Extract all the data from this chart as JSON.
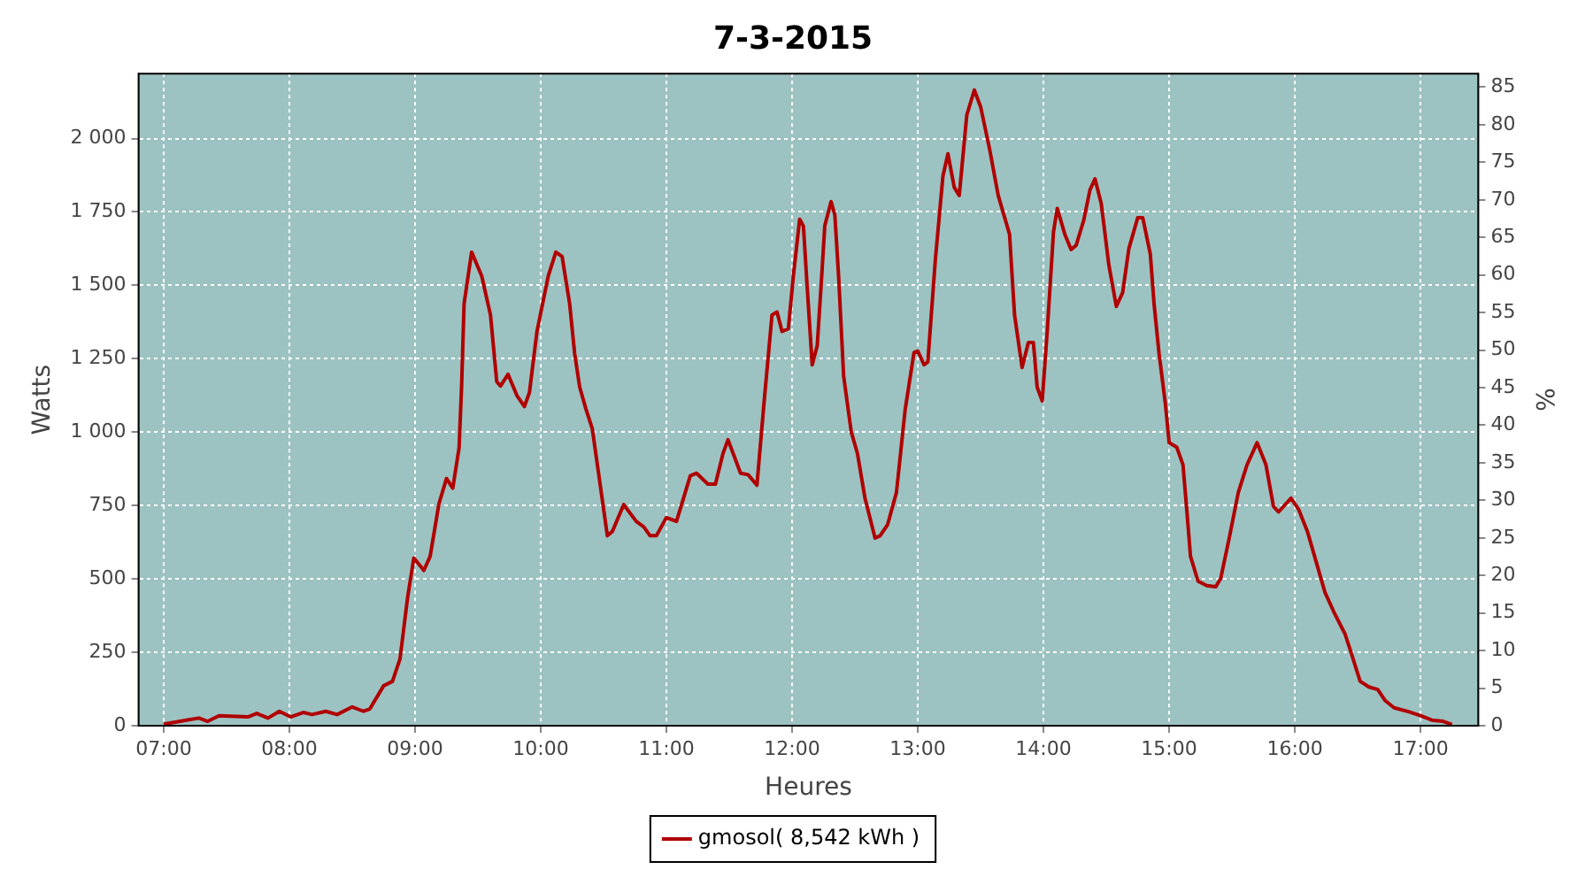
{
  "chart_data": {
    "type": "line",
    "title": "7-3-2015",
    "xlabel": "Heures",
    "ylabel": "Watts",
    "y2label": "%",
    "xlim": [
      6.8,
      17.46
    ],
    "xticks": [
      {
        "value": 7,
        "label": "07:00"
      },
      {
        "value": 8,
        "label": "08:00"
      },
      {
        "value": 9,
        "label": "09:00"
      },
      {
        "value": 10,
        "label": "10:00"
      },
      {
        "value": 11,
        "label": "11:00"
      },
      {
        "value": 12,
        "label": "12:00"
      },
      {
        "value": 13,
        "label": "13:00"
      },
      {
        "value": 14,
        "label": "14:00"
      },
      {
        "value": 15,
        "label": "15:00"
      },
      {
        "value": 16,
        "label": "16:00"
      },
      {
        "value": 17,
        "label": "17:00"
      }
    ],
    "ylim": [
      0,
      2221
    ],
    "yticks": [
      0,
      250,
      500,
      750,
      {
        "value": 1000,
        "label": "1 000"
      },
      {
        "value": 1250,
        "label": "1 250"
      },
      {
        "value": 1500,
        "label": "1 500"
      },
      {
        "value": 1750,
        "label": "1 750"
      },
      {
        "value": 2000,
        "label": "2 000"
      }
    ],
    "y2lim": [
      0,
      86.8
    ],
    "y2ticks": [
      0,
      5,
      10,
      15,
      20,
      25,
      30,
      35,
      40,
      45,
      50,
      55,
      60,
      65,
      70,
      75,
      80,
      85
    ],
    "grid": true,
    "legend": "bottom",
    "marker": "none",
    "line_style": "solid",
    "series": [
      {
        "name": "gmosol( 8,542 kWh )",
        "color": "#b00000",
        "x": [
          7.0,
          7.18,
          7.28,
          7.35,
          7.44,
          7.67,
          7.74,
          7.83,
          7.92,
          8.01,
          8.11,
          8.18,
          8.29,
          8.38,
          8.5,
          8.59,
          8.64,
          8.75,
          8.82,
          8.88,
          8.94,
          8.99,
          9.07,
          9.12,
          9.19,
          9.25,
          9.3,
          9.35,
          9.37,
          9.39,
          9.45,
          9.53,
          9.6,
          9.65,
          9.68,
          9.74,
          9.81,
          9.87,
          9.91,
          9.97,
          10.06,
          10.12,
          10.17,
          10.23,
          10.27,
          10.31,
          10.36,
          10.41,
          10.46,
          10.53,
          10.57,
          10.66,
          10.76,
          10.82,
          10.87,
          10.92,
          11.0,
          11.08,
          11.19,
          11.24,
          11.33,
          11.39,
          11.45,
          11.49,
          11.59,
          11.65,
          11.72,
          11.78,
          11.84,
          11.88,
          11.92,
          11.97,
          12.01,
          12.06,
          12.09,
          12.12,
          12.16,
          12.2,
          12.23,
          12.26,
          12.31,
          12.34,
          12.37,
          12.41,
          12.47,
          12.52,
          12.58,
          12.66,
          12.7,
          12.76,
          12.83,
          12.9,
          12.97,
          13.0,
          13.05,
          13.08,
          13.14,
          13.2,
          13.24,
          13.29,
          13.33,
          13.39,
          13.45,
          13.5,
          13.57,
          13.64,
          13.73,
          13.77,
          13.83,
          13.88,
          13.92,
          13.95,
          13.99,
          14.03,
          14.08,
          14.11,
          14.17,
          14.22,
          14.26,
          14.32,
          14.37,
          14.41,
          14.46,
          14.52,
          14.58,
          14.63,
          14.68,
          14.75,
          14.79,
          14.85,
          14.88,
          14.92,
          14.97,
          15.0,
          15.06,
          15.11,
          15.14,
          15.17,
          15.23,
          15.3,
          15.37,
          15.41,
          15.48,
          15.55,
          15.62,
          15.7,
          15.77,
          15.83,
          15.87,
          15.97,
          16.03,
          16.1,
          16.17,
          16.24,
          16.31,
          16.4,
          16.45,
          16.52,
          16.59,
          16.66,
          16.72,
          16.79,
          16.91,
          17.0,
          17.09,
          17.18,
          17.25
        ],
        "values": [
          5,
          19,
          26,
          15,
          34,
          30,
          42,
          26,
          49,
          30,
          45,
          38,
          49,
          38,
          64,
          49,
          57,
          136,
          151,
          227,
          435,
          571,
          529,
          577,
          756,
          842,
          809,
          946,
          1153,
          1437,
          1613,
          1532,
          1399,
          1172,
          1157,
          1197,
          1125,
          1087,
          1135,
          1343,
          1532,
          1613,
          1598,
          1437,
          1267,
          1153,
          1078,
          1012,
          860,
          647,
          662,
          753,
          696,
          677,
          647,
          647,
          709,
          696,
          851,
          860,
          823,
          823,
          927,
          974,
          860,
          855,
          819,
          1116,
          1399,
          1409,
          1343,
          1352,
          1532,
          1725,
          1702,
          1494,
          1229,
          1295,
          1494,
          1702,
          1785,
          1740,
          1532,
          1191,
          1002,
          927,
          775,
          639,
          647,
          685,
          794,
          1078,
          1271,
          1276,
          1229,
          1239,
          1588,
          1872,
          1948,
          1834,
          1806,
          2080,
          2165,
          2108,
          1967,
          1806,
          1674,
          1399,
          1220,
          1305,
          1305,
          1153,
          1106,
          1343,
          1683,
          1762,
          1674,
          1622,
          1636,
          1721,
          1825,
          1863,
          1778,
          1570,
          1428,
          1475,
          1626,
          1730,
          1730,
          1607,
          1437,
          1267,
          1097,
          964,
          949,
          889,
          737,
          577,
          492,
          477,
          473,
          501,
          643,
          794,
          889,
          964,
          889,
          747,
          728,
          775,
          737,
          662,
          558,
          454,
          388,
          312,
          246,
          151,
          132,
          123,
          85,
          61,
          47,
          34,
          19,
          15,
          4
        ]
      }
    ]
  }
}
